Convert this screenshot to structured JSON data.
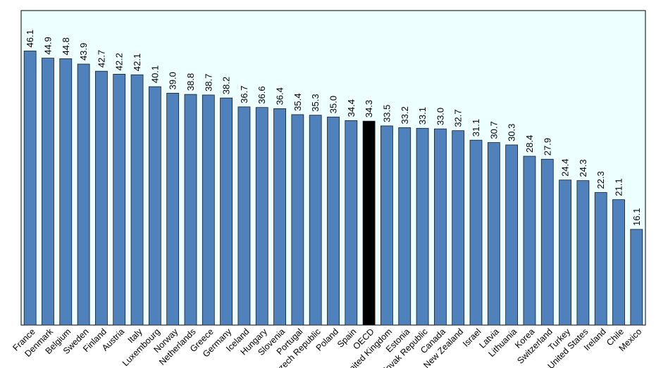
{
  "chart_data": {
    "type": "bar",
    "title": "",
    "xlabel": "",
    "ylabel": "",
    "ylim": [
      0,
      50
    ],
    "grid": false,
    "legend": "none",
    "colors": {
      "bar": "#4f81bd",
      "highlight": "#000000",
      "plot_bg": "#eeffff",
      "bar_stroke": "#1a1a1a"
    },
    "highlight_category": "OECD",
    "categories": [
      "France",
      "Denmark",
      "Belgium",
      "Sweden",
      "Finland",
      "Austria",
      "Italy",
      "Luxembourg",
      "Norway",
      "Netherlands",
      "Greece",
      "Germany",
      "Iceland",
      "Hungary",
      "Slovenia",
      "Portugal",
      "Czech Republic",
      "Poland",
      "Spain",
      "OECD",
      "United Kingdom",
      "Estonia",
      "Slovak Republic",
      "Canada",
      "New Zealand",
      "Israel",
      "Latvia",
      "Lithuania",
      "Korea",
      "Switzerland",
      "Turkey",
      "United States",
      "Ireland",
      "Chile",
      "Mexico"
    ],
    "values": [
      46.1,
      44.9,
      44.8,
      43.9,
      42.7,
      42.2,
      42.1,
      40.1,
      39.0,
      38.8,
      38.7,
      38.2,
      36.7,
      36.6,
      36.4,
      35.4,
      35.3,
      35.0,
      34.4,
      34.3,
      33.5,
      33.2,
      33.1,
      33.0,
      32.7,
      31.1,
      30.7,
      30.3,
      28.4,
      27.9,
      24.4,
      24.3,
      22.3,
      21.1,
      16.1
    ],
    "value_labels": [
      "46.1",
      "44.9",
      "44.8",
      "43.9",
      "42.7",
      "42.2",
      "42.1",
      "40.1",
      "39.0",
      "38.8",
      "38.7",
      "38.2",
      "36.7",
      "36.6",
      "36.4",
      "35.4",
      "35.3",
      "35.0",
      "34.4",
      "34.3",
      "33.5",
      "33.2",
      "33.1",
      "33.0",
      "32.7",
      "31.1",
      "30.7",
      "30.3",
      "28.4",
      "27.9",
      "24.4",
      "24.3",
      "22.3",
      "21.1",
      "16.1"
    ]
  }
}
